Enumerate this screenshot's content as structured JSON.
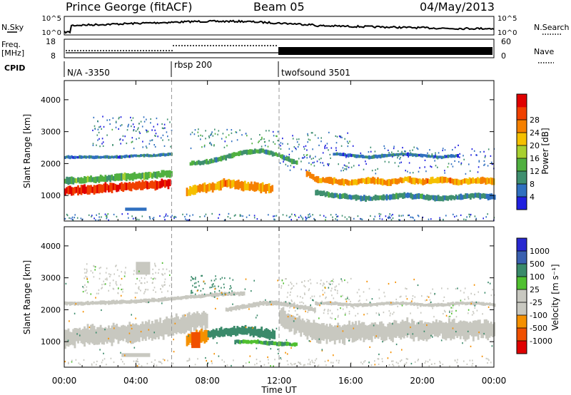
{
  "header": {
    "station": "Prince George (fitACF)",
    "beam": "Beam 05",
    "date": "04/May/2013"
  },
  "top_panels": {
    "nsky_label": "N.Sky",
    "nsky_ticks": [
      "10^5",
      "10^0"
    ],
    "nsearch_label": "N.Search",
    "nsearch_ticks": [
      "10^5",
      "10^0"
    ],
    "freq_label": "Freq.",
    "freq_unit": "[MHz]",
    "freq_ticks": [
      "18",
      "8"
    ],
    "nave_label": "Nave",
    "nave_ticks": [
      "60",
      "0"
    ],
    "cpid_label": "CPID",
    "cpid_segments": [
      {
        "label": "N/A -3350",
        "start_h": 0
      },
      {
        "label": "rbsp 200",
        "start_h": 6
      },
      {
        "label": "twofsound 3501",
        "start_h": 12
      }
    ]
  },
  "colors": {
    "power": [
      "#2020e0",
      "#3070c0",
      "#3f8f6f",
      "#50b040",
      "#a8d030",
      "#f5c000",
      "#f58000",
      "#f04000",
      "#e00000"
    ],
    "velocity": [
      "#e00000",
      "#f05000",
      "#f59000",
      "#c8c8c0",
      "#c8c8c0",
      "#50c030",
      "#3a8a6a",
      "#3a60b0",
      "#2828d0"
    ],
    "ground_scatter": "#c8c8c0"
  },
  "chart_data": [
    {
      "type": "heatmap",
      "panel": "power",
      "ylabel": "Slant Range [km]",
      "ylim": [
        200,
        4600
      ],
      "yticks": [
        1000,
        2000,
        3000,
        4000
      ],
      "xlim": [
        0,
        24
      ],
      "colorbar_label": "Power [dB]",
      "colorbar_ticks": [
        "4",
        "8",
        "12",
        "16",
        "20",
        "24",
        "28"
      ],
      "colorbar_range": [
        0,
        32
      ],
      "bands": [
        {
          "t": [
            0,
            1,
            2,
            3,
            4,
            5,
            5.9
          ],
          "r": [
            1140,
            1180,
            1220,
            1260,
            1300,
            1340,
            1380
          ],
          "w": 260,
          "v": 28
        },
        {
          "t": [
            0,
            1,
            2,
            3,
            4,
            5,
            6
          ],
          "r": [
            1450,
            1480,
            1520,
            1560,
            1600,
            1640,
            1700
          ],
          "w": 200,
          "v": 12
        },
        {
          "t": [
            6.8,
            7.5,
            8,
            8.5,
            9,
            10,
            11,
            11.6
          ],
          "r": [
            1100,
            1200,
            1250,
            1300,
            1400,
            1300,
            1250,
            1200
          ],
          "w": 260,
          "v": 22
        },
        {
          "t": [
            7,
            8,
            9,
            10,
            11,
            12,
            13
          ],
          "r": [
            2000,
            2050,
            2200,
            2350,
            2400,
            2250,
            2000
          ],
          "w": 140,
          "v": 10
        },
        {
          "t": [
            13.5,
            14,
            15,
            16,
            17,
            18,
            19,
            20,
            21,
            22,
            23,
            24
          ],
          "r": [
            1700,
            1500,
            1450,
            1400,
            1480,
            1400,
            1500,
            1430,
            1500,
            1420,
            1480,
            1450
          ],
          "w": 180,
          "v": 22
        },
        {
          "t": [
            14,
            15,
            16,
            17,
            18,
            19,
            20,
            21,
            22,
            23,
            24
          ],
          "r": [
            1100,
            1000,
            950,
            900,
            950,
            1000,
            950,
            900,
            950,
            1000,
            950
          ],
          "w": 160,
          "v": 8
        },
        {
          "t": [
            0,
            1,
            2,
            3,
            4,
            5,
            6
          ],
          "r": [
            2200,
            2200,
            2200,
            2200,
            2250,
            2250,
            2300
          ],
          "w": 90,
          "v": 6
        },
        {
          "t": [
            15,
            16,
            17,
            18,
            19,
            20,
            21,
            22
          ],
          "r": [
            2300,
            2250,
            2200,
            2250,
            2300,
            2250,
            2200,
            2250
          ],
          "w": 100,
          "v": 6
        }
      ],
      "patches": [
        {
          "t": [
            3.4,
            4.6
          ],
          "r": [
            520,
            620
          ],
          "v": 4
        }
      ],
      "scatter": [
        {
          "t": [
            1.5,
            6
          ],
          "r": [
            2500,
            3500
          ],
          "v": 6,
          "n": 120
        },
        {
          "t": [
            7,
            12
          ],
          "r": [
            2500,
            3100
          ],
          "v": 8,
          "n": 80
        },
        {
          "t": [
            12,
            16
          ],
          "r": [
            1800,
            3000
          ],
          "v": 6,
          "n": 120
        },
        {
          "t": [
            16,
            24
          ],
          "r": [
            1700,
            2600
          ],
          "v": 6,
          "n": 120
        },
        {
          "t": [
            0,
            24
          ],
          "r": [
            250,
            450
          ],
          "v": 6,
          "n": 200
        }
      ],
      "scatter_seed": 17
    },
    {
      "type": "heatmap",
      "panel": "velocity",
      "ylabel": "Slant Range [km]",
      "ylim": [
        200,
        4600
      ],
      "yticks": [
        1000,
        2000,
        3000,
        4000
      ],
      "xlim": [
        0,
        24
      ],
      "xticks": [
        "00:00",
        "04:00",
        "08:00",
        "12:00",
        "16:00",
        "20:00",
        "00:00"
      ],
      "xlabel": "Time UT",
      "colorbar_label": "Velocity [m s⁻¹]",
      "colorbar_ticks": [
        "-1000",
        "-500",
        "-100",
        "-25",
        "25",
        "100",
        "500",
        "1000"
      ],
      "bands": [
        {
          "t": [
            0,
            1,
            2,
            3,
            4,
            5,
            6,
            7,
            8
          ],
          "r": [
            1140,
            1180,
            1220,
            1260,
            1300,
            1380,
            1480,
            1600,
            1700
          ],
          "w": 520,
          "v": 0
        },
        {
          "t": [
            6.8,
            7.5,
            8
          ],
          "r": [
            1050,
            1150,
            1200
          ],
          "w": 360,
          "v": -400
        },
        {
          "t": [
            8,
            9,
            10,
            11,
            11.7
          ],
          "r": [
            1250,
            1300,
            1350,
            1280,
            1200
          ],
          "w": 260,
          "v": 400
        },
        {
          "t": [
            9.5,
            10.5,
            11.5,
            13
          ],
          "r": [
            1000,
            1000,
            950,
            900
          ],
          "w": 120,
          "v": 100
        },
        {
          "t": [
            12,
            13,
            14,
            15,
            16,
            17,
            18,
            19,
            20,
            21,
            22,
            23,
            24
          ],
          "r": [
            1800,
            1500,
            1300,
            1250,
            1300,
            1350,
            1300,
            1400,
            1350,
            1400,
            1350,
            1400,
            1400
          ],
          "w": 520,
          "v": 0
        },
        {
          "t": [
            0,
            1,
            2,
            3,
            4,
            5,
            6,
            7,
            8,
            9,
            10
          ],
          "r": [
            2200,
            2200,
            2220,
            2240,
            2260,
            2300,
            2350,
            2400,
            2450,
            2500,
            2500
          ],
          "w": 110,
          "v": 0
        },
        {
          "t": [
            9,
            10,
            11,
            12,
            13,
            14
          ],
          "r": [
            2000,
            2100,
            2200,
            2200,
            2100,
            2000
          ],
          "w": 130,
          "v": 0
        },
        {
          "t": [
            14,
            15,
            16,
            17,
            18,
            19,
            20,
            21,
            22,
            23,
            24
          ],
          "r": [
            2200,
            2200,
            2150,
            2150,
            2200,
            2200,
            2150,
            2150,
            2200,
            2200,
            2150
          ],
          "w": 100,
          "v": 0
        }
      ],
      "patches": [
        {
          "t": [
            4.0,
            4.8
          ],
          "r": [
            3100,
            3500
          ],
          "v": 0
        },
        {
          "t": [
            3.2,
            4.8
          ],
          "r": [
            520,
            640
          ],
          "v": 0
        },
        {
          "t": [
            7.1,
            7.6
          ],
          "r": [
            800,
            1300
          ],
          "v": -800
        }
      ],
      "scatter": [
        {
          "t": [
            1,
            6
          ],
          "r": [
            2500,
            3500
          ],
          "v": 0,
          "n": 140
        },
        {
          "t": [
            7,
            9.5
          ],
          "r": [
            2500,
            3100
          ],
          "v": 200,
          "n": 60
        },
        {
          "t": [
            12,
            16
          ],
          "r": [
            1700,
            3000
          ],
          "v": 0,
          "n": 140
        },
        {
          "t": [
            16,
            24
          ],
          "r": [
            1800,
            2700
          ],
          "v": 0,
          "n": 100
        },
        {
          "t": [
            0,
            24
          ],
          "r": [
            250,
            500
          ],
          "v": 0,
          "n": 160
        },
        {
          "t": [
            0,
            24
          ],
          "r": [
            250,
            3000
          ],
          "v": -300,
          "n": 90
        },
        {
          "t": [
            0,
            24
          ],
          "r": [
            250,
            3000
          ],
          "v": 300,
          "n": 90
        }
      ],
      "scatter_seed": 29
    }
  ]
}
